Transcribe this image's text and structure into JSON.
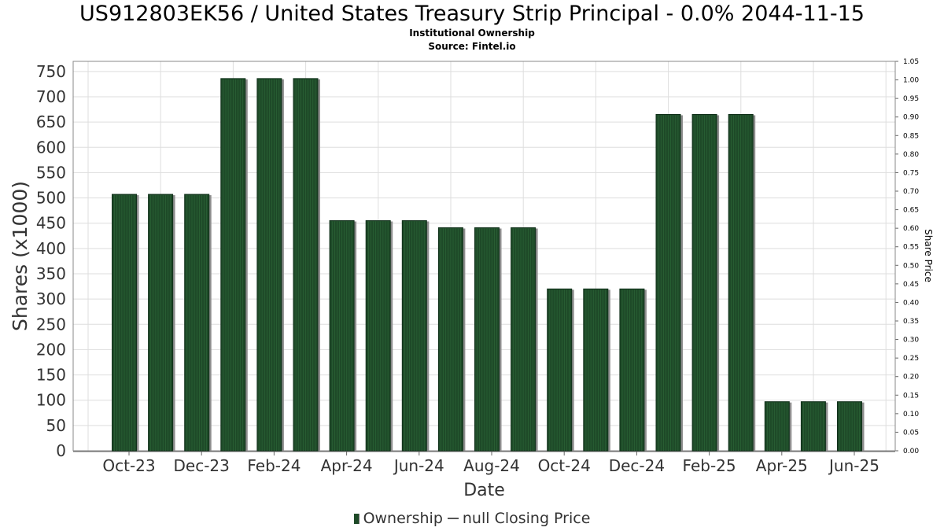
{
  "chart_data": {
    "type": "bar",
    "title": "US912803EK56 / United States Treasury Strip Principal - 0.0% 2044-11-15",
    "subtitle": "Institutional Ownership",
    "source": "Source: Fintel.io",
    "xlabel": "Date",
    "ylabel": "Shares (x1000)",
    "y2label": "Share Price",
    "ylim": [
      0,
      770
    ],
    "y2lim": [
      0,
      1.05
    ],
    "yticks": [
      0,
      50,
      100,
      150,
      200,
      250,
      300,
      350,
      400,
      450,
      500,
      550,
      600,
      650,
      700,
      750
    ],
    "y2ticks": [
      "0.00",
      "0.05",
      "0.10",
      "0.15",
      "0.20",
      "0.25",
      "0.30",
      "0.35",
      "0.40",
      "0.45",
      "0.50",
      "0.55",
      "0.60",
      "0.65",
      "0.70",
      "0.75",
      "0.80",
      "0.85",
      "0.90",
      "0.95",
      "1.00",
      "1.05"
    ],
    "xtick_labels": [
      "Oct-23",
      "Dec-23",
      "Feb-24",
      "Apr-24",
      "Jun-24",
      "Aug-24",
      "Oct-24",
      "Dec-24",
      "Feb-25",
      "Apr-25",
      "Jun-25"
    ],
    "values": [
      507,
      507,
      507,
      736,
      736,
      736,
      455,
      455,
      455,
      441,
      441,
      441,
      320,
      320,
      320,
      665,
      665,
      665,
      97,
      97,
      97
    ],
    "bar_color": "#1e4a28",
    "grid": true,
    "legend_position": "bottom",
    "legend": [
      {
        "label": "Ownership",
        "kind": "bar"
      },
      {
        "label": "null Closing Price",
        "kind": "line"
      }
    ]
  }
}
